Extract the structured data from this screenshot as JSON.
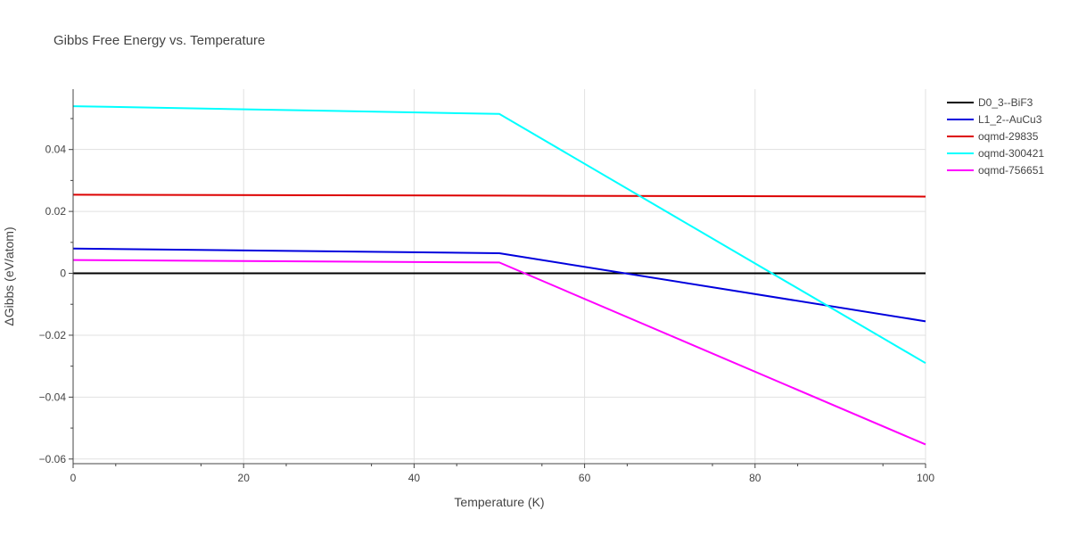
{
  "chart_data": {
    "type": "line",
    "title": "Gibbs Free Energy vs. Temperature",
    "xlabel": "Temperature (K)",
    "ylabel": "ΔGibbs (eV/atom)",
    "xlim": [
      0,
      100
    ],
    "ylim": [
      -0.0615,
      0.0595
    ],
    "x_ticks": [
      0,
      20,
      40,
      60,
      80,
      100
    ],
    "x_tick_labels": [
      "0",
      "20",
      "40",
      "60",
      "80",
      "100"
    ],
    "y_ticks": [
      -0.06,
      -0.04,
      -0.02,
      0,
      0.02,
      0.04
    ],
    "y_tick_labels": [
      "−0.06",
      "−0.04",
      "−0.02",
      "0",
      "0.02",
      "0.04"
    ],
    "grid": true,
    "legend_position": "top-right",
    "series": [
      {
        "name": "D0_3--BiF3",
        "color": "#000000",
        "x": [
          0,
          50,
          100
        ],
        "y": [
          0,
          0,
          0
        ]
      },
      {
        "name": "L1_2--AuCu3",
        "color": "#0000dd",
        "x": [
          0,
          50,
          100
        ],
        "y": [
          0.008,
          0.0065,
          -0.0155
        ]
      },
      {
        "name": "oqmd-29835",
        "color": "#dd0000",
        "x": [
          0,
          50,
          100
        ],
        "y": [
          0.0254,
          0.0251,
          0.0248
        ]
      },
      {
        "name": "oqmd-300421",
        "color": "#00ffff",
        "x": [
          0,
          50,
          100
        ],
        "y": [
          0.054,
          0.0515,
          -0.029
        ]
      },
      {
        "name": "oqmd-756651",
        "color": "#ff00ff",
        "x": [
          0,
          50,
          100
        ],
        "y": [
          0.0043,
          0.0035,
          -0.0553
        ]
      }
    ]
  }
}
